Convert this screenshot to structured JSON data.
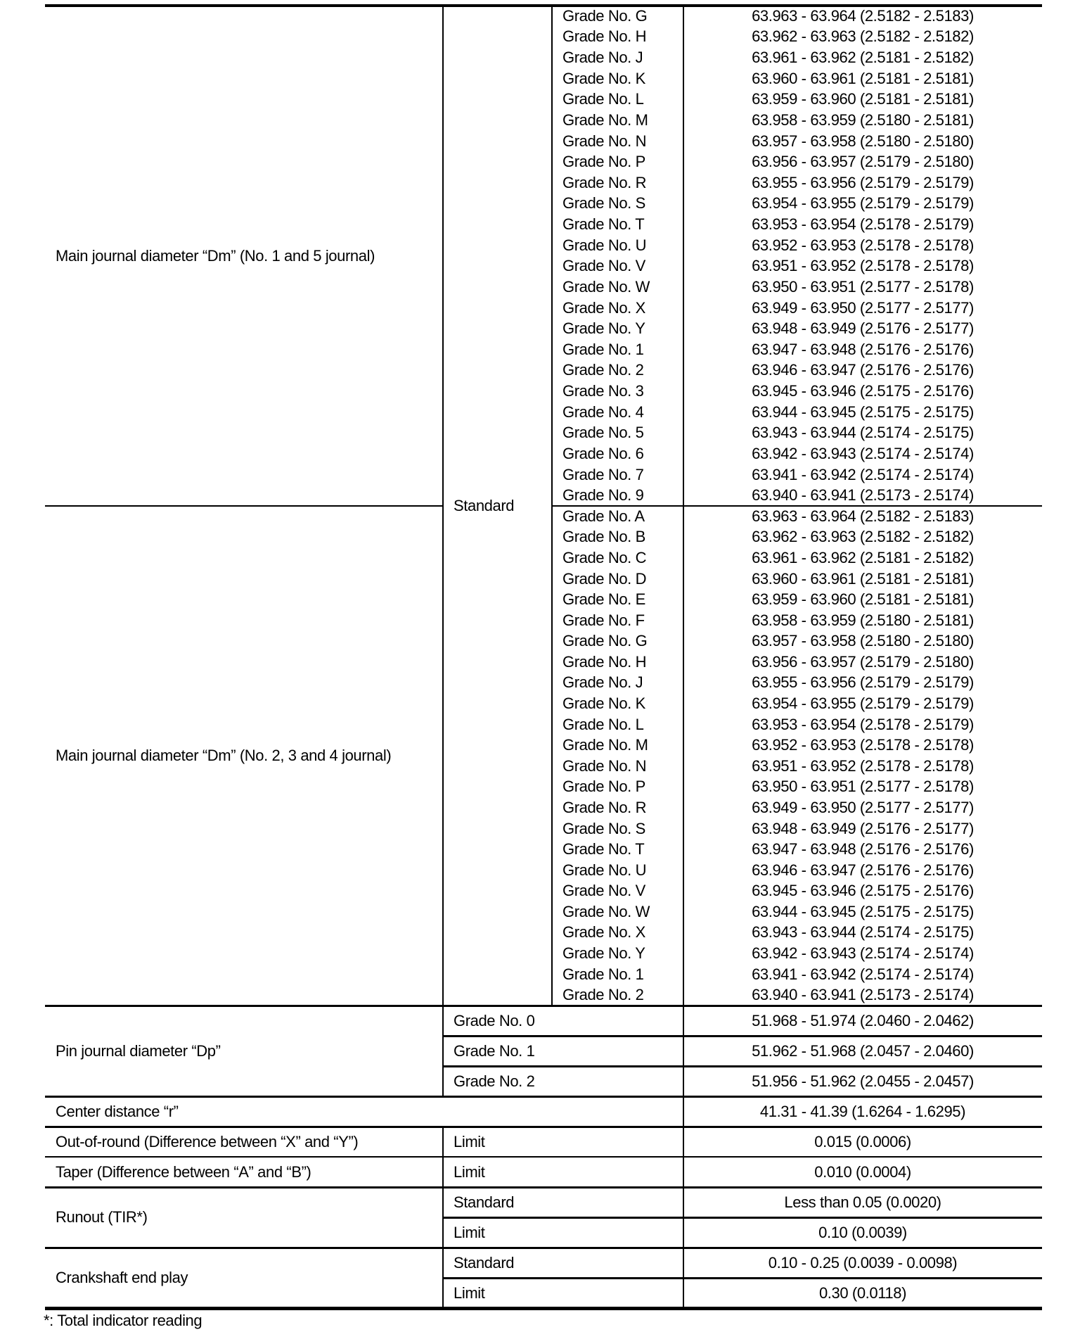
{
  "main_journal_1_5": {
    "label": "Main journal diameter “Dm” (No. 1 and 5 journal)",
    "grades": [
      "Grade No. G",
      "Grade No. H",
      "Grade No. J",
      "Grade No. K",
      "Grade No. L",
      "Grade No. M",
      "Grade No. N",
      "Grade No. P",
      "Grade No. R",
      "Grade No. S",
      "Grade No. T",
      "Grade No. U",
      "Grade No. V",
      "Grade No. W",
      "Grade No. X",
      "Grade No. Y",
      "Grade No. 1",
      "Grade No. 2",
      "Grade No. 3",
      "Grade No. 4",
      "Grade No. 5",
      "Grade No. 6",
      "Grade No. 7",
      "Grade No. 9"
    ],
    "values": [
      "63.963 - 63.964 (2.5182 - 2.5183)",
      "63.962 - 63.963 (2.5182 - 2.5182)",
      "63.961 - 63.962 (2.5181 - 2.5182)",
      "63.960 - 63.961 (2.5181 - 2.5181)",
      "63.959 - 63.960 (2.5181 - 2.5181)",
      "63.958 - 63.959 (2.5180 - 2.5181)",
      "63.957 - 63.958 (2.5180 - 2.5180)",
      "63.956 - 63.957 (2.5179 - 2.5180)",
      "63.955 - 63.956 (2.5179 - 2.5179)",
      "63.954 - 63.955 (2.5179 - 2.5179)",
      "63.953 - 63.954 (2.5178 - 2.5179)",
      "63.952 - 63.953 (2.5178 - 2.5178)",
      "63.951 - 63.952 (2.5178 - 2.5178)",
      "63.950 - 63.951 (2.5177 - 2.5178)",
      "63.949 - 63.950 (2.5177 - 2.5177)",
      "63.948 - 63.949 (2.5176 - 2.5177)",
      "63.947 - 63.948 (2.5176 - 2.5176)",
      "63.946 - 63.947 (2.5176 - 2.5176)",
      "63.945 - 63.946 (2.5175 - 2.5176)",
      "63.944 - 63.945 (2.5175 - 2.5175)",
      "63.943 - 63.944 (2.5174 - 2.5175)",
      "63.942 - 63.943 (2.5174 - 2.5174)",
      "63.941 - 63.942 (2.5174 - 2.5174)",
      "63.940 - 63.941 (2.5173 - 2.5174)"
    ]
  },
  "main_journal_2_3_4": {
    "label": "Main journal diameter “Dm” (No. 2, 3 and 4 journal)",
    "grades": [
      "Grade No. A",
      "Grade No. B",
      "Grade No. C",
      "Grade No. D",
      "Grade No. E",
      "Grade No. F",
      "Grade No. G",
      "Grade No. H",
      "Grade No. J",
      "Grade No. K",
      "Grade No. L",
      "Grade No. M",
      "Grade No. N",
      "Grade No. P",
      "Grade No. R",
      "Grade No. S",
      "Grade No. T",
      "Grade No. U",
      "Grade No. V",
      "Grade No. W",
      "Grade No. X",
      "Grade No. Y",
      "Grade No. 1",
      "Grade No. 2"
    ],
    "values": [
      "63.963 - 63.964 (2.5182 - 2.5183)",
      "63.962 - 63.963 (2.5182 - 2.5182)",
      "63.961 - 63.962 (2.5181 - 2.5182)",
      "63.960 - 63.961 (2.5181 - 2.5181)",
      "63.959 - 63.960 (2.5181 - 2.5181)",
      "63.958 - 63.959 (2.5180 - 2.5181)",
      "63.957 - 63.958 (2.5180 - 2.5180)",
      "63.956 - 63.957 (2.5179 - 2.5180)",
      "63.955 - 63.956 (2.5179 - 2.5179)",
      "63.954 - 63.955 (2.5179 - 2.5179)",
      "63.953 - 63.954 (2.5178 - 2.5179)",
      "63.952 - 63.953 (2.5178 - 2.5178)",
      "63.951 - 63.952 (2.5178 - 2.5178)",
      "63.950 - 63.951 (2.5177 - 2.5178)",
      "63.949 - 63.950 (2.5177 - 2.5177)",
      "63.948 - 63.949 (2.5176 - 2.5177)",
      "63.947 - 63.948 (2.5176 - 2.5176)",
      "63.946 - 63.947 (2.5176 - 2.5176)",
      "63.945 - 63.946 (2.5175 - 2.5176)",
      "63.944 - 63.945 (2.5175 - 2.5175)",
      "63.943 - 63.944 (2.5174 - 2.5175)",
      "63.942 - 63.943 (2.5174 - 2.5174)",
      "63.941 - 63.942 (2.5174 - 2.5174)",
      "63.940 - 63.941 (2.5173 - 2.5174)"
    ]
  },
  "main_journal_condition": "Standard",
  "pin_journal": {
    "label": "Pin journal diameter “Dp”",
    "rows": [
      {
        "grade": "Grade No. 0",
        "value": "51.968 - 51.974 (2.0460 - 2.0462)"
      },
      {
        "grade": "Grade No. 1",
        "value": "51.962 - 51.968 (2.0457 - 2.0460)"
      },
      {
        "grade": "Grade No. 2",
        "value": "51.956 - 51.962 (2.0455 - 2.0457)"
      }
    ]
  },
  "center_distance": {
    "label": "Center distance “r”",
    "value": "41.31 - 41.39 (1.6264 - 1.6295)"
  },
  "out_of_round": {
    "label": "Out-of-round (Difference between “X” and “Y”)",
    "condition": "Limit",
    "value": "0.015 (0.0006)"
  },
  "taper": {
    "label": "Taper (Difference between “A” and “B”)",
    "condition": "Limit",
    "value": "0.010 (0.0004)"
  },
  "runout": {
    "label": "Runout (TIR*)",
    "rows": [
      {
        "condition": "Standard",
        "value": "Less than 0.05 (0.0020)"
      },
      {
        "condition": "Limit",
        "value": "0.10 (0.0039)"
      }
    ]
  },
  "end_play": {
    "label": "Crankshaft end play",
    "rows": [
      {
        "condition": "Standard",
        "value": "0.10 - 0.25 (0.0039 - 0.0098)"
      },
      {
        "condition": "Limit",
        "value": "0.30 (0.0118)"
      }
    ]
  },
  "footnote": "*: Total indicator reading"
}
